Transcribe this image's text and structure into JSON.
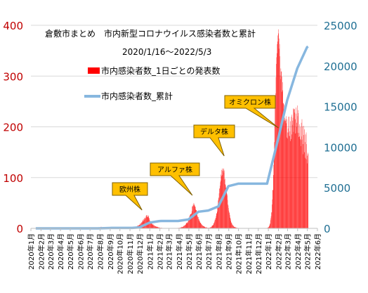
{
  "chart_data": {
    "type": "bar",
    "title": "倉敷市まとめ　市内新型コロナウイルス感染者数と累計",
    "subtitle": "2020/1/16～2022/5/3",
    "left_axis": {
      "ylim": [
        0,
        400
      ],
      "ticks": [
        0,
        100,
        200,
        300,
        400
      ]
    },
    "right_axis": {
      "ylim": [
        0,
        25000
      ],
      "ticks": [
        0,
        5000,
        10000,
        15000,
        20000,
        25000
      ]
    },
    "x_tick_labels": [
      "2020年1月",
      "2020年2月",
      "2020年3月",
      "2020年4月",
      "2020年5月",
      "2020年6月",
      "2020年7月",
      "2020年8月",
      "2020年9月",
      "2020年10月",
      "2020年11月",
      "2020年12月",
      "2021年1月",
      "2021年2月",
      "2021年3月",
      "2021年4月",
      "2021年5月",
      "2021年6月",
      "2021年7月",
      "2021年8月",
      "2021年9月",
      "2021年10月",
      "2021年11月",
      "2021年12月",
      "2022年1月",
      "2022年2月",
      "2022年3月",
      "2022年4月",
      "2022年5月",
      "2022年6月"
    ],
    "series": [
      {
        "name": "市内感染者数_1日ごとの発表数",
        "kind": "bar",
        "axis": "left",
        "color": "#ff0000",
        "monthly_daily_counts": [
          [
            0,
            0,
            0,
            0,
            0,
            0,
            0,
            0,
            0,
            0,
            0,
            0,
            0,
            0,
            0,
            0,
            0,
            0,
            0,
            0,
            0,
            0,
            0,
            0,
            0,
            0,
            0,
            0,
            0,
            0,
            0
          ],
          [
            0,
            0,
            0,
            0,
            0,
            0,
            0,
            0,
            0,
            0,
            0,
            0,
            0,
            0,
            0,
            0,
            0,
            0,
            0,
            0,
            0,
            0,
            0,
            0,
            0,
            0,
            0,
            0,
            0
          ],
          [
            0,
            0,
            0,
            0,
            0,
            0,
            0,
            0,
            0,
            0,
            0,
            0,
            0,
            0,
            0,
            0,
            0,
            0,
            0,
            0,
            0,
            0,
            0,
            0,
            0,
            0,
            0,
            0,
            0,
            0,
            0
          ],
          [
            0,
            0,
            1,
            0,
            0,
            0,
            0,
            0,
            0,
            0,
            0,
            0,
            0,
            0,
            0,
            0,
            0,
            0,
            0,
            0,
            0,
            0,
            0,
            0,
            0,
            0,
            0,
            0,
            0,
            0
          ],
          [
            0,
            0,
            0,
            0,
            0,
            0,
            0,
            0,
            0,
            0,
            0,
            0,
            0,
            0,
            0,
            0,
            0,
            0,
            0,
            0,
            0,
            0,
            0,
            0,
            0,
            0,
            0,
            0,
            0,
            0,
            0
          ],
          [
            0,
            0,
            0,
            0,
            0,
            0,
            0,
            0,
            0,
            0,
            0,
            0,
            0,
            0,
            0,
            0,
            0,
            0,
            0,
            0,
            0,
            0,
            0,
            0,
            0,
            0,
            0,
            0,
            0,
            0
          ],
          [
            0,
            0,
            0,
            0,
            0,
            0,
            0,
            0,
            0,
            0,
            0,
            0,
            0,
            0,
            0,
            0,
            0,
            0,
            0,
            0,
            0,
            0,
            0,
            0,
            1,
            1,
            0,
            1,
            2,
            1,
            1
          ],
          [
            2,
            1,
            3,
            2,
            3,
            2,
            1,
            2,
            2,
            1,
            2,
            1,
            2,
            2,
            1,
            1,
            2,
            1,
            1,
            1,
            1,
            1,
            1,
            1,
            0,
            0,
            1,
            1,
            1,
            0,
            1
          ],
          [
            0,
            0,
            0,
            0,
            1,
            0,
            0,
            0,
            0,
            0,
            0,
            0,
            0,
            0,
            0,
            0,
            0,
            0,
            0,
            0,
            0,
            0,
            0,
            0,
            0,
            0,
            0,
            0,
            0,
            0
          ],
          [
            0,
            0,
            0,
            0,
            0,
            0,
            0,
            0,
            0,
            0,
            0,
            0,
            0,
            0,
            0,
            0,
            0,
            0,
            0,
            0,
            0,
            0,
            0,
            0,
            0,
            0,
            0,
            0,
            0,
            0,
            0
          ],
          [
            0,
            0,
            0,
            0,
            0,
            0,
            0,
            1,
            1,
            2,
            1,
            1,
            2,
            2,
            3,
            3,
            3,
            3,
            3,
            3,
            3,
            4,
            5,
            4,
            5,
            6,
            5,
            6,
            7,
            7
          ],
          [
            7,
            10,
            8,
            9,
            11,
            12,
            11,
            12,
            14,
            17,
            15,
            14,
            18,
            17,
            21,
            19,
            19,
            21,
            21,
            24,
            26,
            26,
            22,
            24,
            26,
            22,
            23,
            25,
            20,
            20,
            16
          ],
          [
            15,
            12,
            13,
            12,
            12,
            10,
            10,
            8,
            8,
            7,
            8,
            6,
            6,
            5,
            6,
            5,
            4,
            4,
            4,
            4,
            3,
            3,
            3,
            3,
            3,
            2,
            2,
            2,
            2,
            2,
            1
          ],
          [
            1,
            1,
            1,
            1,
            1,
            1,
            1,
            0,
            0,
            0,
            0,
            0,
            0,
            0,
            0,
            0,
            0,
            0,
            0,
            0,
            0,
            0,
            0,
            0,
            0,
            0,
            0,
            0
          ],
          [
            0,
            0,
            0,
            0,
            0,
            0,
            0,
            0,
            0,
            0,
            0,
            0,
            0,
            0,
            0,
            0,
            0,
            0,
            0,
            0,
            0,
            0,
            0,
            0,
            0,
            0,
            0,
            0,
            1,
            1,
            0
          ],
          [
            1,
            1,
            1,
            1,
            2,
            2,
            1,
            2,
            3,
            2,
            3,
            3,
            3,
            4,
            5,
            5,
            5,
            6,
            6,
            7,
            7,
            9,
            10,
            11,
            10,
            12,
            11,
            13,
            16,
            16
          ],
          [
            17,
            21,
            24,
            25,
            27,
            28,
            28,
            30,
            28,
            34,
            43,
            44,
            43,
            47,
            45,
            50,
            48,
            46,
            45,
            43,
            42,
            37,
            36,
            36,
            31,
            29,
            25,
            23,
            22,
            22,
            18
          ],
          [
            18,
            15,
            15,
            12,
            11,
            11,
            9,
            9,
            8,
            7,
            6,
            6,
            5,
            5,
            4,
            4,
            4,
            3,
            3,
            2,
            2,
            2,
            2,
            2,
            2,
            1,
            1,
            1,
            1,
            1
          ],
          [
            1,
            1,
            1,
            1,
            2,
            2,
            2,
            2,
            3,
            3,
            5,
            5,
            6,
            7,
            6,
            10,
            10,
            12,
            14,
            17,
            17,
            20,
            21,
            25,
            29,
            30,
            33,
            41,
            48,
            55,
            59
          ],
          [
            61,
            69,
            78,
            79,
            84,
            91,
            94,
            106,
            103,
            115,
            118,
            105,
            113,
            114,
            117,
            118,
            110,
            114,
            96,
            98,
            87,
            85,
            80,
            74,
            71,
            68,
            65,
            56,
            47,
            45,
            40
          ],
          [
            35,
            32,
            30,
            26,
            21,
            19,
            15,
            12,
            11,
            10,
            8,
            7,
            6,
            6,
            5,
            4,
            3,
            3,
            3,
            2,
            2,
            2,
            2,
            1,
            1,
            1,
            1,
            1,
            0,
            0
          ],
          [
            0,
            0,
            0,
            0,
            0,
            0,
            0,
            0,
            0,
            0,
            0,
            0,
            0,
            0,
            0,
            0,
            0,
            0,
            0,
            0,
            0,
            0,
            0,
            0,
            0,
            0,
            0,
            0,
            0,
            0,
            0
          ],
          [
            0,
            0,
            0,
            0,
            0,
            0,
            0,
            0,
            0,
            0,
            0,
            0,
            0,
            0,
            0,
            0,
            0,
            0,
            0,
            0,
            0,
            0,
            0,
            0,
            0,
            0,
            0,
            0,
            0,
            0
          ],
          [
            0,
            0,
            0,
            0,
            0,
            0,
            0,
            0,
            0,
            0,
            0,
            0,
            0,
            0,
            0,
            0,
            0,
            0,
            0,
            0,
            0,
            0,
            0,
            0,
            0,
            0,
            0,
            1,
            1,
            1,
            2
          ],
          [
            2,
            3,
            4,
            6,
            8,
            10,
            16,
            20,
            24,
            31,
            32,
            47,
            57,
            76,
            75,
            105,
            125,
            151,
            170,
            201,
            259,
            260,
            266,
            298,
            324,
            337,
            345,
            363,
            368,
            380,
            384
          ],
          [
            392,
            354,
            374,
            363,
            339,
            301,
            294,
            315,
            309,
            309,
            269,
            299,
            272,
            288,
            247,
            246,
            235,
            244,
            213,
            218,
            211,
            212,
            215,
            207,
            221,
            215,
            179,
            189
          ],
          [
            177,
            197,
            189,
            220,
            220,
            182,
            182,
            191,
            172,
            211,
            176,
            220,
            185,
            224,
            204,
            212,
            218,
            236,
            190,
            234,
            236,
            228,
            235,
            215,
            187,
            226,
            238,
            200,
            208,
            188,
            242
          ],
          [
            221,
            233,
            227,
            188,
            180,
            205,
            181,
            200,
            176,
            174,
            162,
            208,
            181,
            215,
            175,
            201,
            146,
            166,
            202,
            184,
            150,
            195,
            139,
            170,
            185,
            137,
            189,
            166,
            136,
            143
          ],
          [
            128,
            146,
            149
          ]
        ]
      },
      {
        "name": "市内感染者数_累計",
        "kind": "line",
        "axis": "right",
        "color": "#87b7df",
        "points": [
          {
            "date": "2020-01-16",
            "y": 0
          },
          {
            "date": "2020-04-03",
            "y": 1
          },
          {
            "date": "2020-07-25",
            "y": 2
          },
          {
            "date": "2020-08-31",
            "y": 47
          },
          {
            "date": "2020-09-05",
            "y": 48
          },
          {
            "date": "2020-11-08",
            "y": 50
          },
          {
            "date": "2020-11-30",
            "y": 120
          },
          {
            "date": "2020-12-31",
            "y": 700
          },
          {
            "date": "2021-01-31",
            "y": 900
          },
          {
            "date": "2021-02-07",
            "y": 905
          },
          {
            "date": "2021-03-29",
            "y": 910
          },
          {
            "date": "2021-04-30",
            "y": 1100
          },
          {
            "date": "2021-05-31",
            "y": 2050
          },
          {
            "date": "2021-06-30",
            "y": 2200
          },
          {
            "date": "2021-07-31",
            "y": 2700
          },
          {
            "date": "2021-08-31",
            "y": 5200
          },
          {
            "date": "2021-09-30",
            "y": 5500
          },
          {
            "date": "2021-12-28",
            "y": 5500
          },
          {
            "date": "2022-01-31",
            "y": 11000
          },
          {
            "date": "2022-02-28",
            "y": 15800
          },
          {
            "date": "2022-03-31",
            "y": 19700
          },
          {
            "date": "2022-04-30",
            "y": 22300
          },
          {
            "date": "2022-05-03",
            "y": 22400
          }
        ]
      }
    ],
    "annotations": [
      {
        "text": "欧州株",
        "points_to_date": "2020-12-08"
      },
      {
        "text": "アルファ株",
        "points_to_date": "2021-05-12"
      },
      {
        "text": "デルタ株",
        "points_to_date": "2021-08-18"
      },
      {
        "text": "オミクロン株",
        "points_to_date": "2022-02-01"
      }
    ],
    "legend_position": "top-left (inside plot)",
    "grid": true
  }
}
